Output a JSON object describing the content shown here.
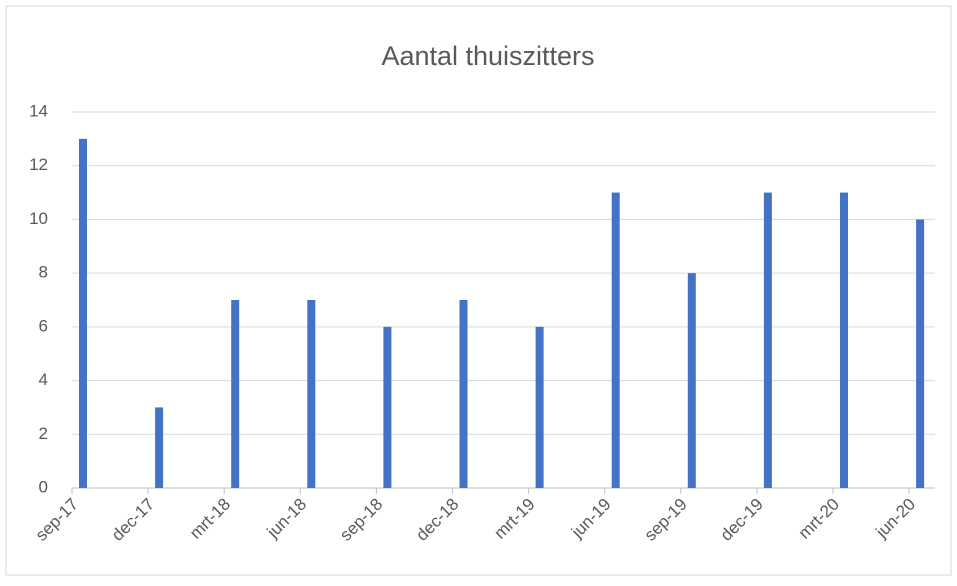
{
  "chart_data": {
    "type": "bar",
    "title": "Aantal thuiszitters",
    "categories": [
      "sep-17",
      "dec-17",
      "mrt-18",
      "jun-18",
      "sep-18",
      "dec-18",
      "mrt-19",
      "jun-19",
      "sep-19",
      "dec-19",
      "mrt-20",
      "jun-20"
    ],
    "values": [
      13,
      3,
      7,
      7,
      6,
      7,
      6,
      11,
      8,
      11,
      11,
      10
    ],
    "color": "#4472c4",
    "ylim": [
      0,
      14
    ],
    "yticks": [
      0,
      2,
      4,
      6,
      8,
      10,
      12,
      14
    ],
    "grid": true
  }
}
